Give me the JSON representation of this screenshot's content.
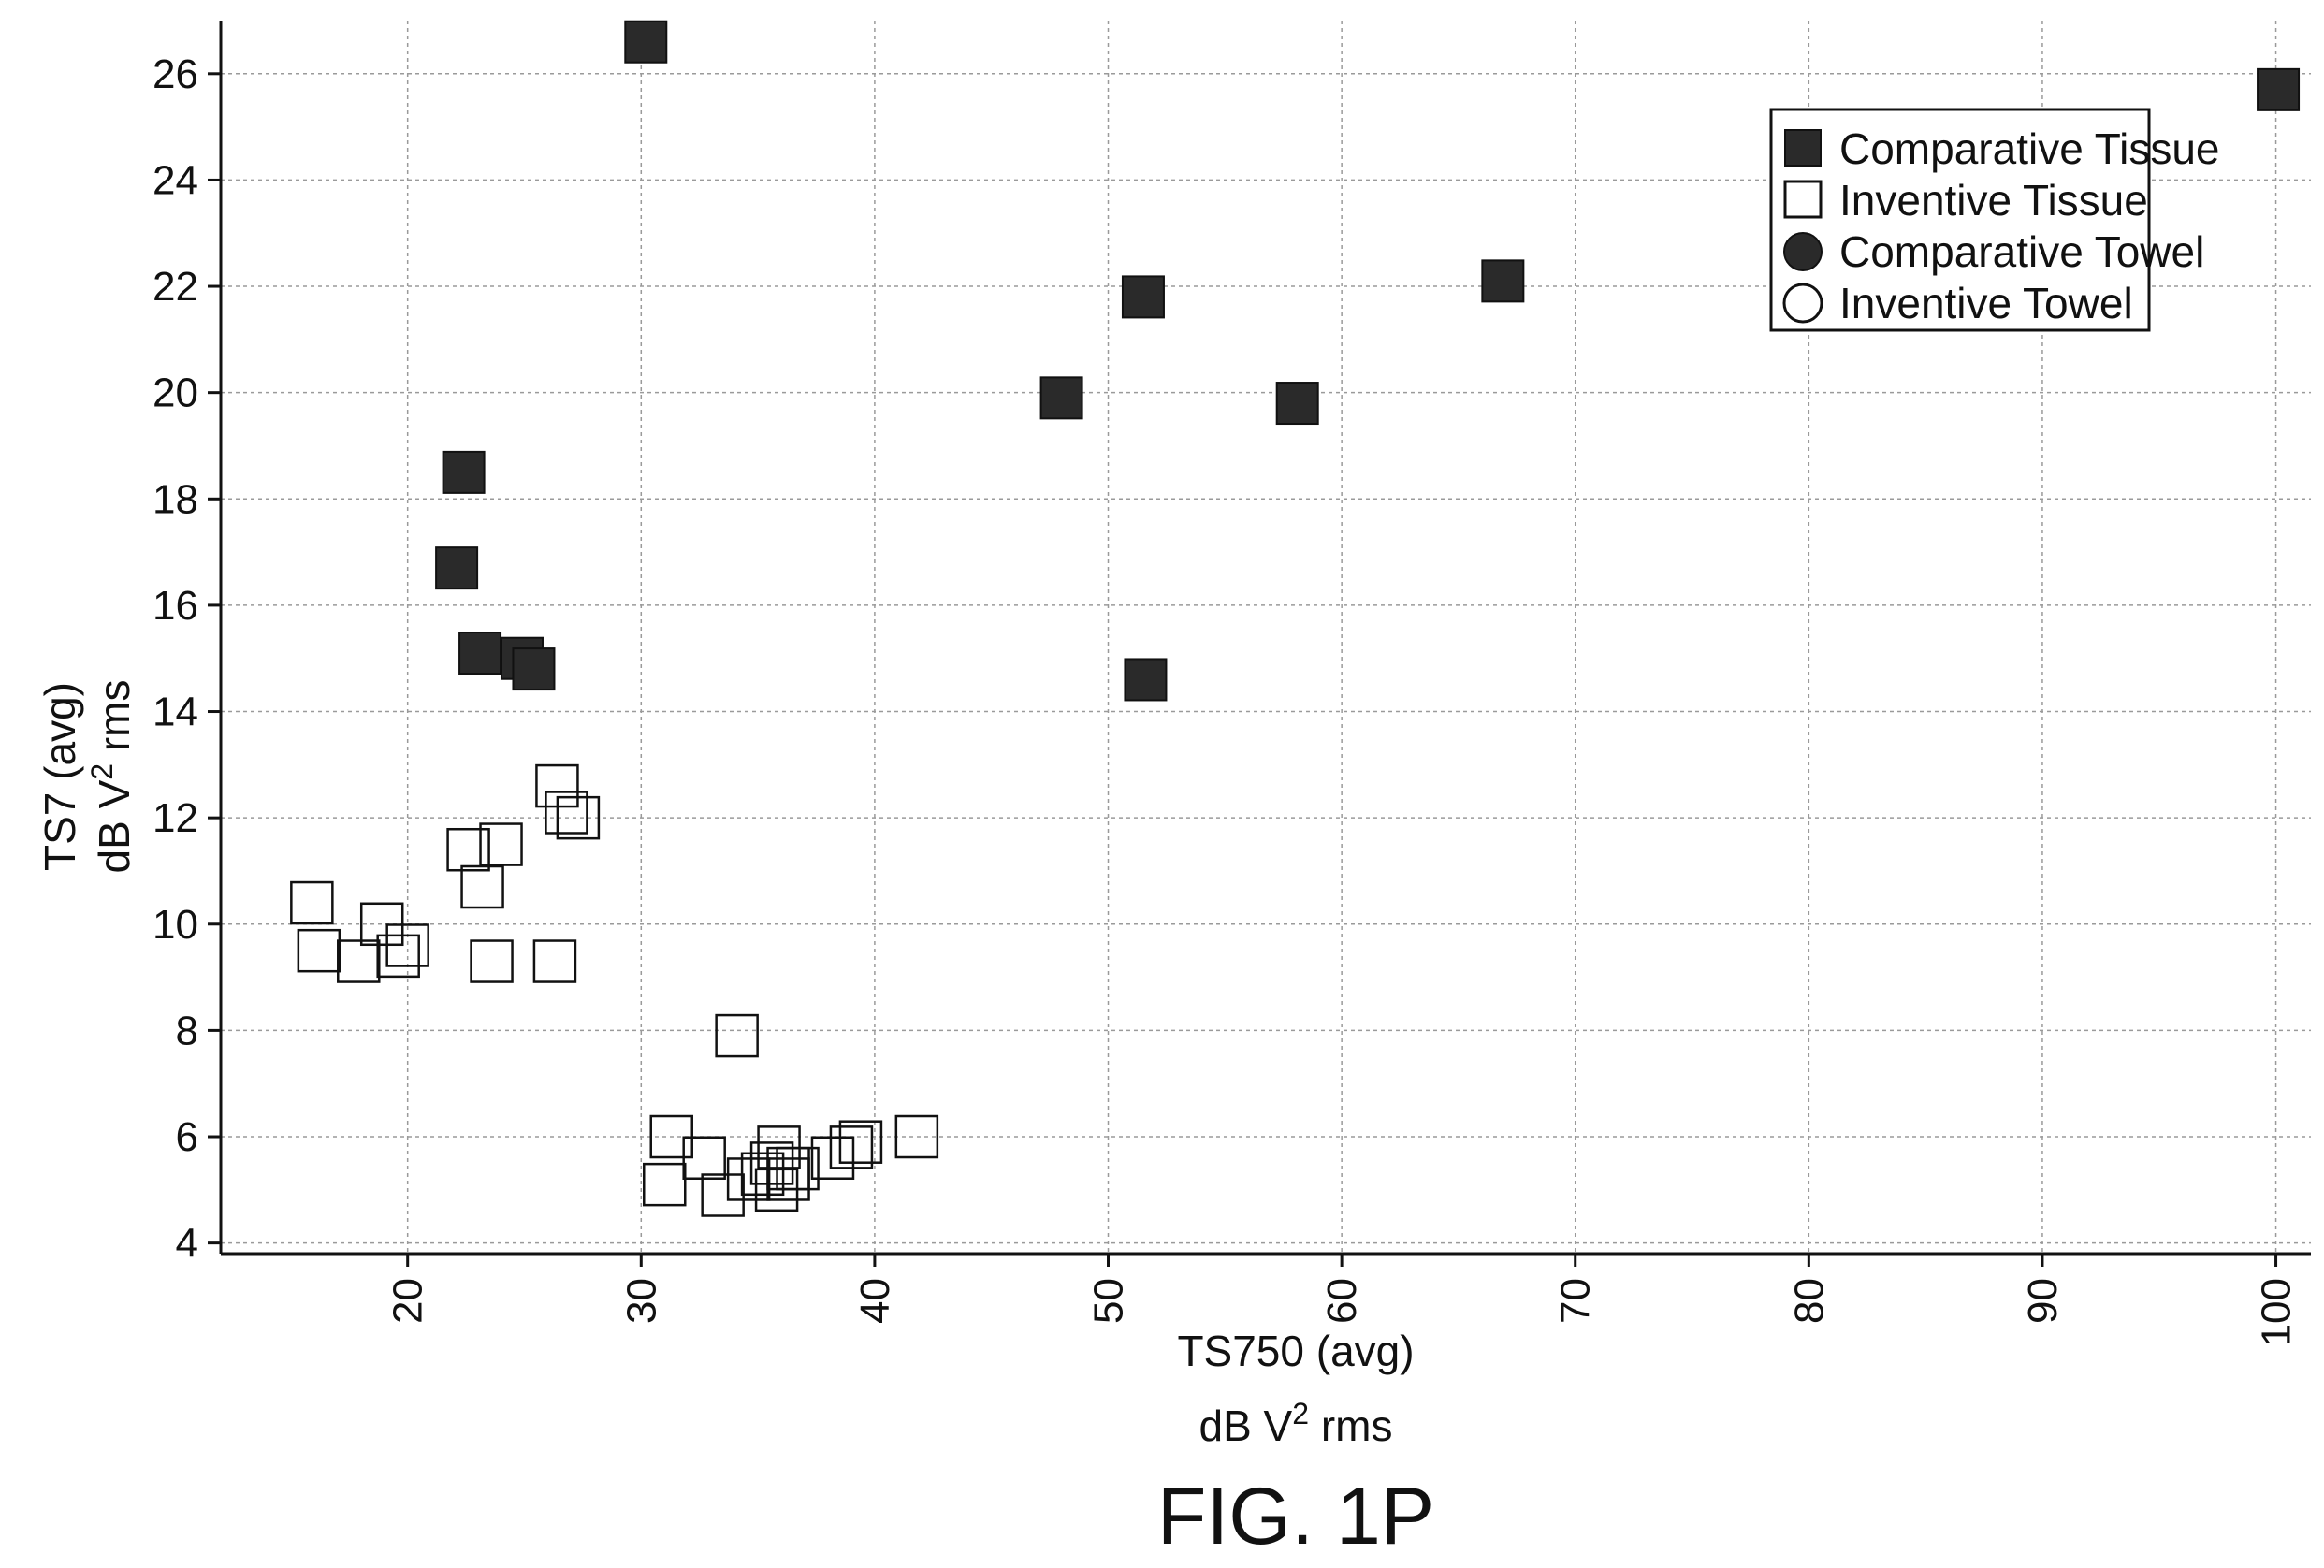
{
  "figure_label": "FIG. 1P",
  "chart_data": {
    "type": "scatter",
    "xlabel": "TS750 (avg)",
    "xunit_prefix": "dB V",
    "xunit_sup": "2",
    "xunit_suffix": " rms",
    "ylabel": "TS7 (avg)",
    "yunit_prefix": "dB V",
    "yunit_sup": "2",
    "yunit_suffix": " rms",
    "xlim": [
      12,
      101.5
    ],
    "ylim": [
      3.8,
      27.0
    ],
    "xticks": [
      "20",
      "30",
      "40",
      "50",
      "60",
      "70",
      "80",
      "90",
      "100"
    ],
    "yticks": [
      "4",
      "6",
      "8",
      "10",
      "12",
      "14",
      "16",
      "18",
      "20",
      "22",
      "24",
      "26"
    ],
    "grid": true,
    "legend_position": "top-right",
    "series": [
      {
        "name": "Comparative Tissue",
        "marker": "filled-square",
        "points": [
          [
            30.2,
            26.6
          ],
          [
            100.1,
            25.7
          ],
          [
            66.9,
            22.1
          ],
          [
            51.5,
            21.8
          ],
          [
            48.0,
            19.9
          ],
          [
            58.1,
            19.8
          ],
          [
            22.4,
            18.5
          ],
          [
            22.1,
            16.7
          ],
          [
            23.1,
            15.1
          ],
          [
            24.9,
            15.0
          ],
          [
            25.4,
            14.8
          ],
          [
            51.6,
            14.6
          ]
        ]
      },
      {
        "name": "Inventive Tissue",
        "marker": "open-square",
        "points": [
          [
            26.4,
            12.6
          ],
          [
            26.8,
            12.1
          ],
          [
            27.3,
            12.0
          ],
          [
            24.0,
            11.5
          ],
          [
            22.6,
            11.4
          ],
          [
            23.2,
            10.7
          ],
          [
            15.9,
            10.4
          ],
          [
            18.9,
            10.0
          ],
          [
            20.0,
            9.6
          ],
          [
            16.2,
            9.5
          ],
          [
            17.9,
            9.3
          ],
          [
            19.6,
            9.4
          ],
          [
            23.6,
            9.3
          ],
          [
            26.3,
            9.3
          ],
          [
            34.1,
            7.9
          ],
          [
            31.3,
            6.0
          ],
          [
            41.8,
            6.0
          ],
          [
            39.4,
            5.9
          ],
          [
            39.0,
            5.8
          ],
          [
            35.9,
            5.8
          ],
          [
            38.2,
            5.6
          ],
          [
            32.7,
            5.6
          ],
          [
            35.6,
            5.5
          ],
          [
            36.3,
            5.4
          ],
          [
            36.7,
            5.4
          ],
          [
            35.2,
            5.3
          ],
          [
            34.6,
            5.2
          ],
          [
            36.3,
            5.2
          ],
          [
            31.0,
            5.1
          ],
          [
            35.8,
            5.0
          ],
          [
            33.5,
            4.9
          ]
        ]
      },
      {
        "name": "Comparative Towel",
        "marker": "filled-circle",
        "points": []
      },
      {
        "name": "Inventive Towel",
        "marker": "open-circle",
        "points": []
      }
    ],
    "colors": {
      "ink": "#111111",
      "grid": "#9a9a9a",
      "fill": "#2a2a2a"
    }
  }
}
